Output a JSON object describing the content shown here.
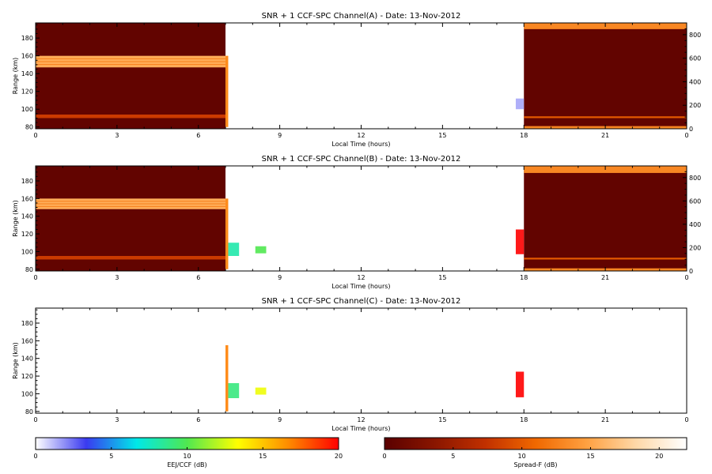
{
  "chart_data": [
    {
      "type": "heatmap",
      "title": "SNR + 1 CCF-SPC Channel(A) - Date: 13-Nov-2012",
      "xlabel": "Local Time (hours)",
      "ylabel": "Range (km)",
      "xlim": [
        0,
        24
      ],
      "xticks": [
        "0",
        "3",
        "6",
        "9",
        "12",
        "15",
        "18",
        "21",
        "0"
      ],
      "ylim": [
        78,
        197
      ],
      "yticks": [
        80,
        100,
        120,
        140,
        160,
        180
      ],
      "y2lim": [
        0,
        900
      ],
      "y2ticks": [
        0,
        200,
        400,
        600,
        800
      ],
      "regions": [
        {
          "name": "evening",
          "x": [
            0,
            7.0
          ],
          "colorscale": "spread_f",
          "base_db": 0.6,
          "bands": [
            {
              "y": [
                147,
                160
              ],
              "db": 15.5,
              "lines": true
            },
            {
              "y": [
                90,
                94
              ],
              "db": 8
            }
          ]
        },
        {
          "name": "morning",
          "x": [
            18.0,
            24
          ],
          "colorscale": "spread_f",
          "base_db": 0.6,
          "bands": [
            {
              "y": [
                190,
                197
              ],
              "db": 13
            },
            {
              "y": [
                78,
                81
              ],
              "db": 13
            },
            {
              "y": [
                90,
                92
              ],
              "db": 10
            }
          ]
        }
      ],
      "patches": [
        {
          "x": [
            7.0,
            7.1
          ],
          "y": [
            80,
            160
          ],
          "colorscale": "eej_ccf",
          "db": 17
        },
        {
          "x": [
            17.7,
            18.0
          ],
          "y": [
            100,
            112
          ],
          "colorscale": "eej_ccf",
          "db": 1.5
        }
      ]
    },
    {
      "type": "heatmap",
      "title": "SNR + 1 CCF-SPC Channel(B) - Date: 13-Nov-2012",
      "xlabel": "Local Time (hours)",
      "ylabel": "Range (km)",
      "xlim": [
        0,
        24
      ],
      "xticks": [
        "0",
        "3",
        "6",
        "9",
        "12",
        "15",
        "18",
        "21",
        "0"
      ],
      "ylim": [
        78,
        197
      ],
      "yticks": [
        80,
        100,
        120,
        140,
        160,
        180
      ],
      "y2lim": [
        0,
        900
      ],
      "y2ticks": [
        0,
        200,
        400,
        600,
        800
      ],
      "regions": [
        {
          "name": "evening",
          "x": [
            0,
            7.0
          ],
          "colorscale": "spread_f",
          "base_db": 0.6,
          "bands": [
            {
              "y": [
                148,
                160
              ],
              "db": 15.5,
              "lines": true
            },
            {
              "y": [
                91,
                95
              ],
              "db": 8
            }
          ]
        },
        {
          "name": "morning",
          "x": [
            18.0,
            24
          ],
          "colorscale": "spread_f",
          "base_db": 0.6,
          "bands": [
            {
              "y": [
                189,
                197
              ],
              "db": 13
            },
            {
              "y": [
                78,
                81
              ],
              "db": 13
            },
            {
              "y": [
                91,
                93
              ],
              "db": 10
            }
          ]
        }
      ],
      "patches": [
        {
          "x": [
            7.0,
            7.1
          ],
          "y": [
            80,
            160
          ],
          "colorscale": "eej_ccf",
          "db": 17
        },
        {
          "x": [
            7.1,
            7.5
          ],
          "y": [
            95,
            110
          ],
          "colorscale": "eej_ccf",
          "db": 8
        },
        {
          "x": [
            8.1,
            8.5
          ],
          "y": [
            98,
            106
          ],
          "colorscale": "eej_ccf",
          "db": 10
        },
        {
          "x": [
            17.7,
            18.0
          ],
          "y": [
            97,
            125
          ],
          "colorscale": "eej_ccf",
          "db": 20
        }
      ]
    },
    {
      "type": "heatmap",
      "title": "SNR + 1 CCF-SPC Channel(C) - Date: 13-Nov-2012",
      "xlabel": "Local Time (hours)",
      "ylabel": "Range (km)",
      "xlim": [
        0,
        24
      ],
      "xticks": [
        "0",
        "3",
        "6",
        "9",
        "12",
        "15",
        "18",
        "21",
        "0"
      ],
      "ylim": [
        78,
        197
      ],
      "yticks": [
        80,
        100,
        120,
        140,
        160,
        180
      ],
      "regions": [],
      "patches": [
        {
          "x": [
            7.0,
            7.1
          ],
          "y": [
            80,
            155
          ],
          "colorscale": "eej_ccf",
          "db": 17
        },
        {
          "x": [
            7.1,
            7.5
          ],
          "y": [
            95,
            112
          ],
          "colorscale": "eej_ccf",
          "db": 9
        },
        {
          "x": [
            8.1,
            8.5
          ],
          "y": [
            99,
            107
          ],
          "colorscale": "eej_ccf",
          "db": 13
        },
        {
          "x": [
            17.7,
            18.0
          ],
          "y": [
            96,
            125
          ],
          "colorscale": "eej_ccf",
          "db": 20
        }
      ]
    }
  ],
  "colorbars": [
    {
      "label": "EEJ/CCF (dB)",
      "range": [
        0,
        20
      ],
      "ticks": [
        0,
        5,
        10,
        15,
        20
      ],
      "colors": [
        "#ffffff",
        "#3a3af0",
        "#00e8e8",
        "#50e850",
        "#ffff00",
        "#ff8c00",
        "#ff0000"
      ]
    },
    {
      "label": "Spread-F (dB)",
      "range": [
        0,
        22
      ],
      "ticks": [
        0,
        5,
        10,
        15,
        20
      ],
      "colors": [
        "#5a0000",
        "#8a1600",
        "#c13000",
        "#f06800",
        "#ffa040",
        "#ffd8a8",
        "#ffffff"
      ]
    }
  ]
}
